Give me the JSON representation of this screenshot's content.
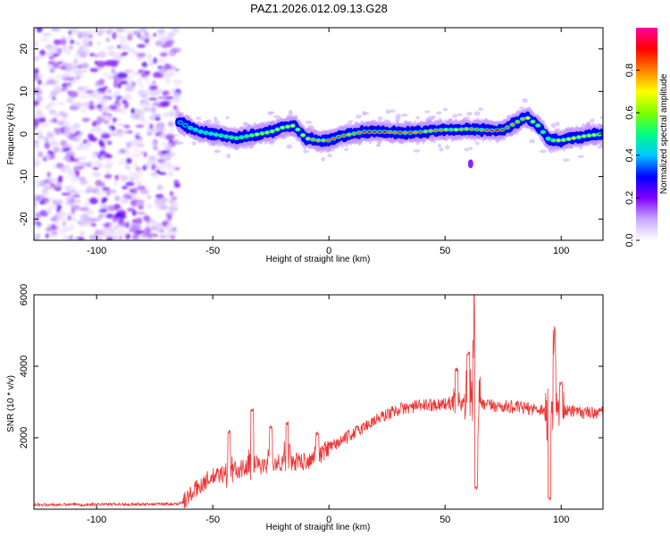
{
  "title": "PAZ1.2026.012.09.13.G28",
  "chart_data": [
    {
      "type": "heatmap",
      "xlabel": "Height of straight line (km)",
      "ylabel": "Frequency (Hz)",
      "xlim": [
        -127,
        118
      ],
      "ylim": [
        -25,
        25
      ],
      "x_ticks": [
        -100,
        -50,
        0,
        50,
        100
      ],
      "x_tick_labels": [
        "-100",
        "-50",
        "0",
        "50",
        "100"
      ],
      "y_ticks": [
        -20,
        -10,
        0,
        10,
        20
      ],
      "y_tick_labels": [
        "-20",
        "-10",
        "0",
        "10",
        "20"
      ],
      "noise_region_x": [
        -127,
        -65
      ],
      "ridge": {
        "x": [
          -65,
          -60,
          -55,
          -50,
          -45,
          -40,
          -35,
          -30,
          -25,
          -20,
          -15,
          -10,
          -5,
          0,
          5,
          10,
          15,
          20,
          25,
          30,
          35,
          40,
          45,
          50,
          55,
          60,
          65,
          70,
          75,
          80,
          85,
          90,
          95,
          100,
          105,
          110,
          118
        ],
        "frequency": [
          3,
          1.5,
          0.5,
          0,
          -0.5,
          -1,
          -0.5,
          0,
          0.5,
          1.5,
          2,
          -1,
          -1.5,
          -1.5,
          -0.5,
          0,
          0.5,
          0.5,
          0.5,
          0.3,
          0.3,
          0.5,
          0.8,
          1,
          1,
          1.2,
          1,
          0.8,
          1,
          2.5,
          4,
          2,
          -1.5,
          -1.5,
          -1,
          -0.5,
          0
        ],
        "amplitude": [
          0.3,
          0.4,
          0.45,
          0.5,
          0.55,
          0.55,
          0.6,
          0.7,
          0.7,
          0.75,
          0.7,
          0.75,
          0.8,
          0.85,
          0.85,
          0.9,
          0.9,
          0.95,
          0.95,
          0.9,
          0.9,
          0.85,
          0.85,
          0.85,
          0.8,
          0.85,
          0.9,
          0.95,
          0.95,
          0.9,
          0.8,
          0.6,
          0.6,
          0.7,
          0.75,
          0.75,
          0.7
        ]
      },
      "colorbar": {
        "label": "Normalized spectral amplitude",
        "ticks": [
          0.0,
          0.2,
          0.4,
          0.6,
          0.8
        ],
        "tick_labels": [
          "0.0",
          "0.2",
          "0.4",
          "0.6",
          "0.8"
        ],
        "range": [
          0,
          1
        ],
        "colormap": [
          "#ffffff",
          "#c8a8ff",
          "#8000ff",
          "#0000ff",
          "#00c8ff",
          "#00ff80",
          "#80ff00",
          "#ffff00",
          "#ff8000",
          "#ff0000",
          "#ff00a0"
        ]
      }
    },
    {
      "type": "line",
      "xlabel": "Height of straight line (km)",
      "ylabel": "SNR (10 * v/v)",
      "xlim": [
        -127,
        118
      ],
      "ylim": [
        0,
        6000
      ],
      "x_ticks": [
        -100,
        -50,
        0,
        50,
        100
      ],
      "x_tick_labels": [
        "-100",
        "-50",
        "0",
        "50",
        "100"
      ],
      "y_ticks": [
        2000,
        4000,
        6000
      ],
      "y_tick_labels": [
        "2000",
        "4000",
        "6000"
      ],
      "color": "#ee3333",
      "trend": {
        "x": [
          -127,
          -65,
          -62,
          -55,
          -50,
          -40,
          -30,
          -20,
          -10,
          0,
          10,
          20,
          30,
          40,
          50,
          60,
          70,
          80,
          90,
          100,
          110,
          118
        ],
        "snr": [
          120,
          150,
          250,
          700,
          900,
          1100,
          1200,
          1300,
          1350,
          1700,
          2100,
          2500,
          2800,
          2900,
          2950,
          2950,
          2900,
          2850,
          2800,
          2750,
          2700,
          2700
        ]
      },
      "spikes": [
        {
          "x": -43,
          "snr": 2150
        },
        {
          "x": -33,
          "snr": 2800
        },
        {
          "x": -25,
          "snr": 2300
        },
        {
          "x": -18,
          "snr": 2400
        },
        {
          "x": -5,
          "snr": 2100
        },
        {
          "x": 55,
          "snr": 3900
        },
        {
          "x": 60,
          "snr": 4350
        },
        {
          "x": 63,
          "snr": 6100
        },
        {
          "x": 63.5,
          "snr": 600
        },
        {
          "x": 97,
          "snr": 5000
        },
        {
          "x": 95,
          "snr": 300
        },
        {
          "x": 100,
          "snr": 3500
        }
      ]
    }
  ]
}
